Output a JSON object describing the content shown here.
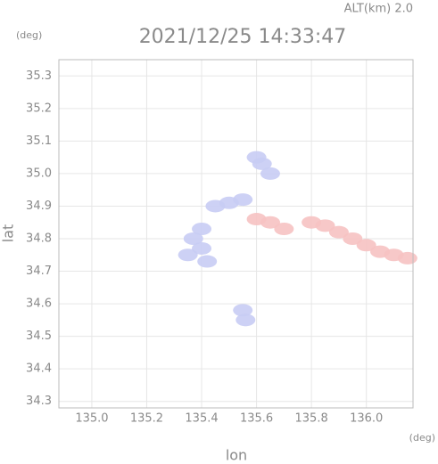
{
  "chart_data": {
    "type": "scatter",
    "header": "ALT(km) 2.0",
    "title": "2021/12/25 14:33:47",
    "y_unit": "(deg)",
    "x_unit": "(deg)",
    "xlabel": "lon",
    "ylabel": "lat",
    "xlim": [
      134.88,
      136.17
    ],
    "ylim": [
      34.28,
      35.35
    ],
    "xticks": [
      {
        "value": 135,
        "label": "135.0"
      },
      135.2,
      135.4,
      135.6,
      135.8,
      {
        "value": 136,
        "label": "136.0"
      }
    ],
    "yticks": [
      34.3,
      34.4,
      34.5,
      34.6,
      34.7,
      34.8,
      34.9,
      {
        "value": 35,
        "label": "35.0"
      },
      35.1,
      35.2,
      35.3
    ],
    "grid": true,
    "series": [
      {
        "color": "#c8ccf4",
        "x": [
          135.6,
          135.62,
          135.65,
          135.5,
          135.55,
          135.45,
          135.4,
          135.37,
          135.4,
          135.35,
          135.42,
          135.55,
          135.56
        ],
        "y": [
          35.05,
          35.03,
          35.0,
          34.91,
          34.92,
          34.9,
          34.83,
          34.8,
          34.77,
          34.75,
          34.73,
          34.58,
          34.55
        ]
      },
      {
        "color": "#f6c2c2",
        "x": [
          135.6,
          135.65,
          135.7,
          135.8,
          135.85,
          135.9,
          135.95,
          136.0,
          136.05,
          136.1,
          136.15
        ],
        "y": [
          34.86,
          34.85,
          34.83,
          34.85,
          34.84,
          34.82,
          34.8,
          34.78,
          34.76,
          34.75,
          34.74
        ]
      }
    ]
  }
}
